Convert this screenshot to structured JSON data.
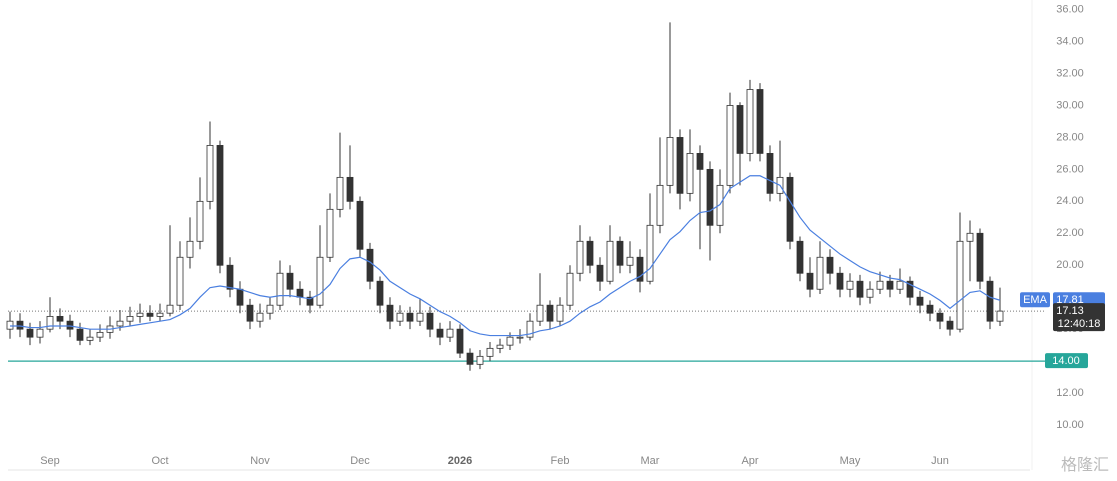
{
  "chart_data": {
    "type": "candlestick",
    "categories": [
      null,
      null,
      null,
      null,
      "Sep",
      null,
      null,
      null,
      null,
      null,
      null,
      null,
      null,
      null,
      null,
      "Oct",
      null,
      null,
      null,
      null,
      null,
      null,
      null,
      null,
      null,
      "Nov",
      null,
      null,
      null,
      null,
      null,
      null,
      null,
      null,
      null,
      "Dec",
      null,
      null,
      null,
      null,
      null,
      null,
      null,
      null,
      null,
      "2026",
      null,
      null,
      null,
      null,
      null,
      null,
      null,
      null,
      null,
      "Feb",
      null,
      null,
      null,
      null,
      null,
      null,
      null,
      null,
      "Mar",
      null,
      null,
      null,
      null,
      null,
      null,
      null,
      null,
      null,
      "Apr",
      null,
      null,
      null,
      null,
      null,
      null,
      null,
      null,
      null,
      "May",
      null,
      null,
      null,
      null,
      null,
      null,
      null,
      null,
      "Jun",
      null,
      null,
      null,
      null,
      null,
      null
    ],
    "open": [
      16.0,
      16.5,
      16.0,
      15.5,
      16.0,
      16.8,
      16.5,
      16.0,
      15.3,
      15.5,
      15.8,
      16.2,
      16.5,
      16.8,
      17.0,
      16.8,
      17.0,
      17.5,
      20.5,
      21.5,
      24.0,
      27.5,
      20.0,
      18.5,
      17.5,
      16.5,
      17.0,
      17.5,
      19.5,
      18.5,
      18.0,
      17.5,
      20.5,
      23.5,
      25.5,
      24.0,
      21.0,
      19.0,
      17.5,
      16.5,
      17.0,
      16.5,
      17.0,
      16.0,
      15.5,
      16.0,
      14.5,
      13.8,
      14.3,
      14.8,
      15.0,
      15.5,
      15.5,
      16.5,
      17.5,
      16.5,
      17.5,
      19.5,
      21.5,
      20.0,
      19.0,
      21.5,
      20.0,
      20.5,
      19.0,
      22.5,
      25.0,
      28.0,
      24.5,
      27.0,
      26.0,
      22.5,
      25.0,
      30.0,
      27.0,
      31.0,
      27.0,
      24.5,
      25.5,
      21.5,
      19.5,
      18.5,
      20.5,
      19.5,
      18.5,
      19.0,
      18.0,
      18.5,
      19.0,
      18.5,
      19.0,
      18.0,
      17.5,
      17.0,
      16.5,
      16.0,
      21.5,
      22.0,
      19.0,
      16.5
    ],
    "high": [
      17.1,
      17.0,
      16.4,
      16.5,
      18.0,
      17.3,
      16.9,
      16.4,
      16.0,
      16.3,
      16.8,
      17.2,
      17.4,
      17.6,
      17.5,
      17.6,
      22.5,
      21.5,
      23.0,
      25.5,
      29.0,
      27.8,
      20.5,
      19.0,
      17.9,
      17.6,
      18.0,
      20.3,
      20.0,
      19.0,
      18.4,
      22.5,
      24.5,
      28.3,
      27.5,
      24.3,
      21.4,
      19.3,
      18.0,
      17.5,
      17.4,
      17.9,
      17.4,
      16.4,
      16.5,
      16.3,
      14.8,
      14.7,
      15.2,
      15.4,
      15.8,
      16.0,
      17.0,
      19.5,
      17.8,
      18.0,
      20.0,
      22.5,
      21.8,
      20.5,
      22.5,
      21.8,
      21.5,
      21.0,
      24.5,
      28.0,
      35.2,
      28.5,
      28.5,
      27.5,
      26.5,
      26.0,
      30.8,
      30.2,
      31.6,
      31.4,
      27.5,
      27.8,
      25.8,
      21.8,
      20.5,
      21.5,
      21.0,
      19.9,
      19.5,
      19.4,
      19.0,
      19.6,
      19.4,
      19.8,
      19.3,
      18.4,
      17.8,
      17.3,
      16.8,
      23.3,
      22.8,
      22.3,
      19.3,
      18.6
    ],
    "low": [
      15.4,
      15.5,
      15.0,
      15.1,
      15.8,
      16.0,
      15.5,
      15.0,
      15.0,
      15.2,
      15.4,
      15.9,
      16.2,
      16.4,
      16.5,
      16.5,
      16.8,
      17.2,
      19.8,
      21.0,
      23.5,
      19.5,
      18.0,
      17.0,
      16.0,
      16.1,
      16.6,
      17.2,
      18.0,
      17.5,
      17.0,
      17.3,
      20.2,
      23.0,
      23.5,
      20.5,
      18.5,
      17.0,
      16.0,
      16.2,
      16.0,
      16.2,
      15.5,
      15.0,
      15.2,
      14.2,
      13.4,
      13.5,
      14.0,
      14.5,
      14.7,
      15.1,
      15.3,
      16.2,
      16.0,
      16.2,
      17.2,
      19.0,
      19.5,
      18.4,
      18.8,
      19.5,
      19.5,
      18.3,
      18.8,
      22.0,
      24.5,
      23.5,
      24.0,
      21.0,
      20.3,
      22.0,
      24.5,
      25.0,
      26.5,
      26.5,
      24.0,
      24.0,
      21.0,
      19.0,
      18.0,
      18.2,
      18.8,
      18.0,
      18.0,
      17.5,
      17.6,
      18.2,
      18.0,
      18.2,
      17.5,
      17.0,
      16.5,
      16.0,
      15.6,
      15.8,
      19.0,
      18.5,
      16.0,
      16.2
    ],
    "close": [
      16.5,
      16.0,
      15.5,
      16.0,
      16.8,
      16.5,
      16.0,
      15.3,
      15.5,
      15.8,
      16.2,
      16.5,
      16.8,
      17.0,
      16.8,
      17.0,
      17.5,
      20.5,
      21.5,
      24.0,
      27.5,
      20.0,
      18.5,
      17.5,
      16.5,
      17.0,
      17.5,
      19.5,
      18.5,
      18.0,
      17.5,
      20.5,
      23.5,
      25.5,
      24.0,
      21.0,
      19.0,
      17.5,
      16.5,
      17.0,
      16.5,
      17.0,
      16.0,
      15.5,
      16.0,
      14.5,
      13.8,
      14.3,
      14.8,
      15.0,
      15.5,
      15.5,
      16.5,
      17.5,
      16.5,
      17.5,
      19.5,
      21.5,
      20.0,
      19.0,
      21.5,
      20.0,
      20.5,
      19.0,
      22.5,
      25.0,
      28.0,
      24.5,
      27.0,
      26.0,
      22.5,
      25.0,
      30.0,
      27.0,
      31.0,
      27.0,
      24.5,
      25.5,
      21.5,
      19.5,
      18.5,
      20.5,
      19.5,
      18.5,
      19.0,
      18.0,
      18.5,
      19.0,
      18.5,
      19.0,
      18.0,
      17.5,
      17.0,
      16.5,
      16.0,
      21.5,
      22.0,
      19.0,
      16.5,
      17.13
    ],
    "up_color": "#ffffff",
    "down_color": "#333333",
    "wick_color": "#333333",
    "ema": {
      "name": "EMA",
      "color": "#4a7fe0",
      "values": [
        16.2,
        16.2,
        16.1,
        16.1,
        16.2,
        16.2,
        16.2,
        16.1,
        16.0,
        16.0,
        16.0,
        16.1,
        16.2,
        16.3,
        16.4,
        16.5,
        16.6,
        16.9,
        17.3,
        18.0,
        18.6,
        18.7,
        18.6,
        18.5,
        18.3,
        18.1,
        18.0,
        18.1,
        18.1,
        18.0,
        17.9,
        18.2,
        18.8,
        19.8,
        20.4,
        20.5,
        20.2,
        19.7,
        19.0,
        18.6,
        18.2,
        17.9,
        17.5,
        17.1,
        16.8,
        16.4,
        15.9,
        15.7,
        15.6,
        15.6,
        15.6,
        15.6,
        15.7,
        15.9,
        16.0,
        16.2,
        16.5,
        17.0,
        17.4,
        17.7,
        18.2,
        18.6,
        19.0,
        19.3,
        19.8,
        20.7,
        21.6,
        22.1,
        22.8,
        23.3,
        23.4,
        23.8,
        24.8,
        25.2,
        25.6,
        25.6,
        25.3,
        25.0,
        24.0,
        23.0,
        22.2,
        21.7,
        21.2,
        20.7,
        20.3,
        19.9,
        19.6,
        19.4,
        19.2,
        19.1,
        18.8,
        18.5,
        18.2,
        17.8,
        17.3,
        17.8,
        18.3,
        18.4,
        18.0,
        17.81
      ]
    },
    "countdown": "12:40:18",
    "support": {
      "value": 14,
      "label": "14.00",
      "color": "#26a69a"
    },
    "ylim": [
      7.5,
      36.6
    ],
    "yticks": [
      {
        "value": 10,
        "label": "10.00"
      },
      {
        "value": 12,
        "label": "12.00"
      },
      {
        "value": 14,
        "label": "14.00"
      },
      {
        "value": 16,
        "label": "16.00"
      },
      {
        "value": 18,
        "label": "18.00"
      },
      {
        "value": 20,
        "label": "20.00"
      },
      {
        "value": 22,
        "label": "22.00"
      },
      {
        "value": 24,
        "label": "24.00"
      },
      {
        "value": 26,
        "label": "26.00"
      },
      {
        "value": 28,
        "label": "28.00"
      },
      {
        "value": 30,
        "label": "30.00"
      },
      {
        "value": 32,
        "label": "32.00"
      },
      {
        "value": 34,
        "label": "34.00"
      },
      {
        "value": 36,
        "label": "36.00"
      }
    ],
    "grid": false,
    "watermark": "格隆汇"
  }
}
